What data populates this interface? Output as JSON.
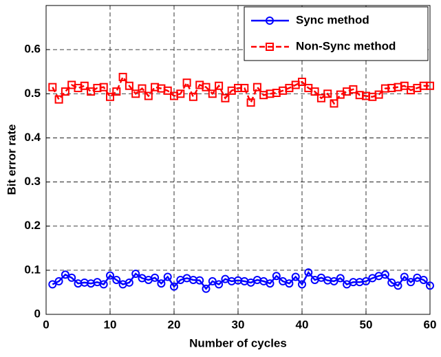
{
  "chart_data": {
    "type": "line",
    "xlabel": "Number of cycles",
    "ylabel": "Bit error rate",
    "x": [
      1,
      2,
      3,
      4,
      5,
      6,
      7,
      8,
      9,
      10,
      11,
      12,
      13,
      14,
      15,
      16,
      17,
      18,
      19,
      20,
      21,
      22,
      23,
      24,
      25,
      26,
      27,
      28,
      29,
      30,
      31,
      32,
      33,
      34,
      35,
      36,
      37,
      38,
      39,
      40,
      41,
      42,
      43,
      44,
      45,
      46,
      47,
      48,
      49,
      50,
      51,
      52,
      53,
      54,
      55,
      56,
      57,
      58,
      59,
      60
    ],
    "series": [
      {
        "name": "Sync method",
        "color": "#0000ff",
        "marker": "circle",
        "linestyle": "solid",
        "values": [
          0.068,
          0.075,
          0.09,
          0.083,
          0.07,
          0.072,
          0.07,
          0.073,
          0.068,
          0.088,
          0.078,
          0.068,
          0.072,
          0.092,
          0.082,
          0.078,
          0.083,
          0.07,
          0.085,
          0.063,
          0.078,
          0.082,
          0.078,
          0.077,
          0.058,
          0.075,
          0.068,
          0.08,
          0.075,
          0.077,
          0.075,
          0.072,
          0.078,
          0.075,
          0.07,
          0.087,
          0.075,
          0.07,
          0.085,
          0.068,
          0.095,
          0.078,
          0.083,
          0.077,
          0.075,
          0.082,
          0.068,
          0.073,
          0.073,
          0.075,
          0.082,
          0.087,
          0.09,
          0.072,
          0.065,
          0.085,
          0.073,
          0.083,
          0.078,
          0.065
        ]
      },
      {
        "name": "Non-Sync method",
        "color": "#ff0000",
        "marker": "square",
        "linestyle": "dashed",
        "values": [
          0.515,
          0.487,
          0.505,
          0.52,
          0.513,
          0.518,
          0.505,
          0.513,
          0.515,
          0.493,
          0.505,
          0.538,
          0.518,
          0.5,
          0.512,
          0.495,
          0.515,
          0.512,
          0.507,
          0.495,
          0.5,
          0.525,
          0.493,
          0.52,
          0.515,
          0.5,
          0.518,
          0.49,
          0.507,
          0.513,
          0.513,
          0.48,
          0.515,
          0.497,
          0.5,
          0.502,
          0.507,
          0.513,
          0.52,
          0.527,
          0.513,
          0.505,
          0.49,
          0.5,
          0.478,
          0.498,
          0.505,
          0.51,
          0.497,
          0.495,
          0.493,
          0.498,
          0.512,
          0.513,
          0.515,
          0.518,
          0.508,
          0.513,
          0.518,
          0.518
        ]
      }
    ],
    "xlim": [
      0,
      60
    ],
    "xticks": [
      0,
      10,
      20,
      30,
      40,
      50,
      60
    ],
    "ylim": [
      0,
      0.7
    ],
    "yticks": [
      0,
      0.1,
      0.2,
      0.3,
      0.4,
      0.5,
      0.6
    ],
    "grid": true,
    "legend": "upper right"
  }
}
